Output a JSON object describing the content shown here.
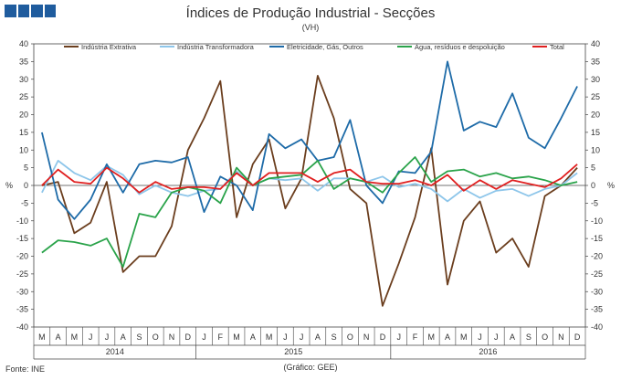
{
  "header": {
    "title": "Índices de Produção Industrial - Secções",
    "subtitle": "(VH)"
  },
  "footer": {
    "source": "Fonte: INE",
    "credit": "(Gráfico: GEE)"
  },
  "chart_data": {
    "type": "line",
    "title": "Índices de Produção Industrial - Secções",
    "subtitle": "(VH)",
    "ylabel": "%",
    "ylabel_right": "%",
    "ylim": [
      -40,
      40
    ],
    "yticks": [
      -40,
      -35,
      -30,
      -25,
      -20,
      -15,
      -10,
      -5,
      0,
      5,
      10,
      15,
      20,
      25,
      30,
      35,
      40
    ],
    "month_labels": [
      "M",
      "A",
      "M",
      "J",
      "J",
      "A",
      "S",
      "O",
      "N",
      "D",
      "J",
      "F",
      "M",
      "A",
      "M",
      "J",
      "J",
      "A",
      "S",
      "O",
      "N",
      "D",
      "J",
      "F",
      "M",
      "A",
      "M",
      "J",
      "J",
      "A",
      "S",
      "O",
      "N",
      "D"
    ],
    "year_labels": [
      "2014",
      "2015",
      "2016"
    ],
    "year_spans": [
      [
        0,
        9
      ],
      [
        10,
        21
      ],
      [
        22,
        33
      ]
    ],
    "legend_position": "top",
    "series": [
      {
        "name": "Indústria Extrativa",
        "color": "#6b3e1e",
        "values": [
          0,
          1,
          -13.5,
          -10.5,
          1,
          -24.5,
          -20,
          -20,
          -11.5,
          10,
          19,
          29.5,
          -9,
          6,
          13,
          -6.5,
          2,
          31,
          19,
          -1,
          -5,
          -34,
          -22,
          -9,
          10.5,
          -28,
          -10,
          -4.5,
          -19,
          -15,
          -23,
          -3,
          0,
          5
        ]
      },
      {
        "name": "Indústria Transformadora",
        "color": "#8ec6ea",
        "values": [
          -2,
          7,
          3.5,
          1.5,
          5.5,
          3,
          -2.5,
          0,
          -2,
          -3,
          -1.5,
          -1,
          4,
          0,
          2,
          1.5,
          2,
          -1.5,
          2,
          2,
          1,
          2.5,
          -0.5,
          0.5,
          -1,
          -4.5,
          -1,
          -3.5,
          -1.5,
          -1,
          -3,
          -1,
          0,
          3.5
        ]
      },
      {
        "name": "Eletricidade, Gás, Outros",
        "color": "#1e6ba8",
        "values": [
          15,
          -4,
          -9.5,
          -4,
          6,
          -2,
          6,
          7,
          6.5,
          8,
          -7.5,
          2.5,
          0,
          -7,
          14.5,
          10.5,
          13,
          7,
          8,
          18.5,
          0,
          -5,
          4,
          3.5,
          9.5,
          35,
          15.5,
          18,
          16.5,
          26,
          13.5,
          10.5,
          19,
          28
        ]
      },
      {
        "name": "Água, resíduos e despoluição",
        "color": "#2aa34a",
        "values": [
          -19,
          -15.5,
          -16,
          -17,
          -15,
          -23,
          -8,
          -9,
          -2,
          -0.5,
          -1.5,
          -5,
          5,
          0,
          2,
          2.5,
          3,
          7,
          -1,
          2,
          1,
          -2,
          3.5,
          8,
          1,
          4,
          4.5,
          2.5,
          3.5,
          2,
          2.5,
          1.5,
          0,
          1
        ]
      },
      {
        "name": "Total",
        "color": "#e02020",
        "values": [
          0,
          4.5,
          1,
          0.5,
          5,
          2,
          -2,
          1,
          -1,
          -0.5,
          -0.5,
          -1,
          3.5,
          0,
          3.5,
          3.5,
          3.5,
          1,
          3.5,
          4.5,
          1,
          0.5,
          0.5,
          1.5,
          0,
          3,
          -1.5,
          1.5,
          -1,
          1.5,
          0.5,
          -0.5,
          2,
          6
        ]
      }
    ]
  }
}
